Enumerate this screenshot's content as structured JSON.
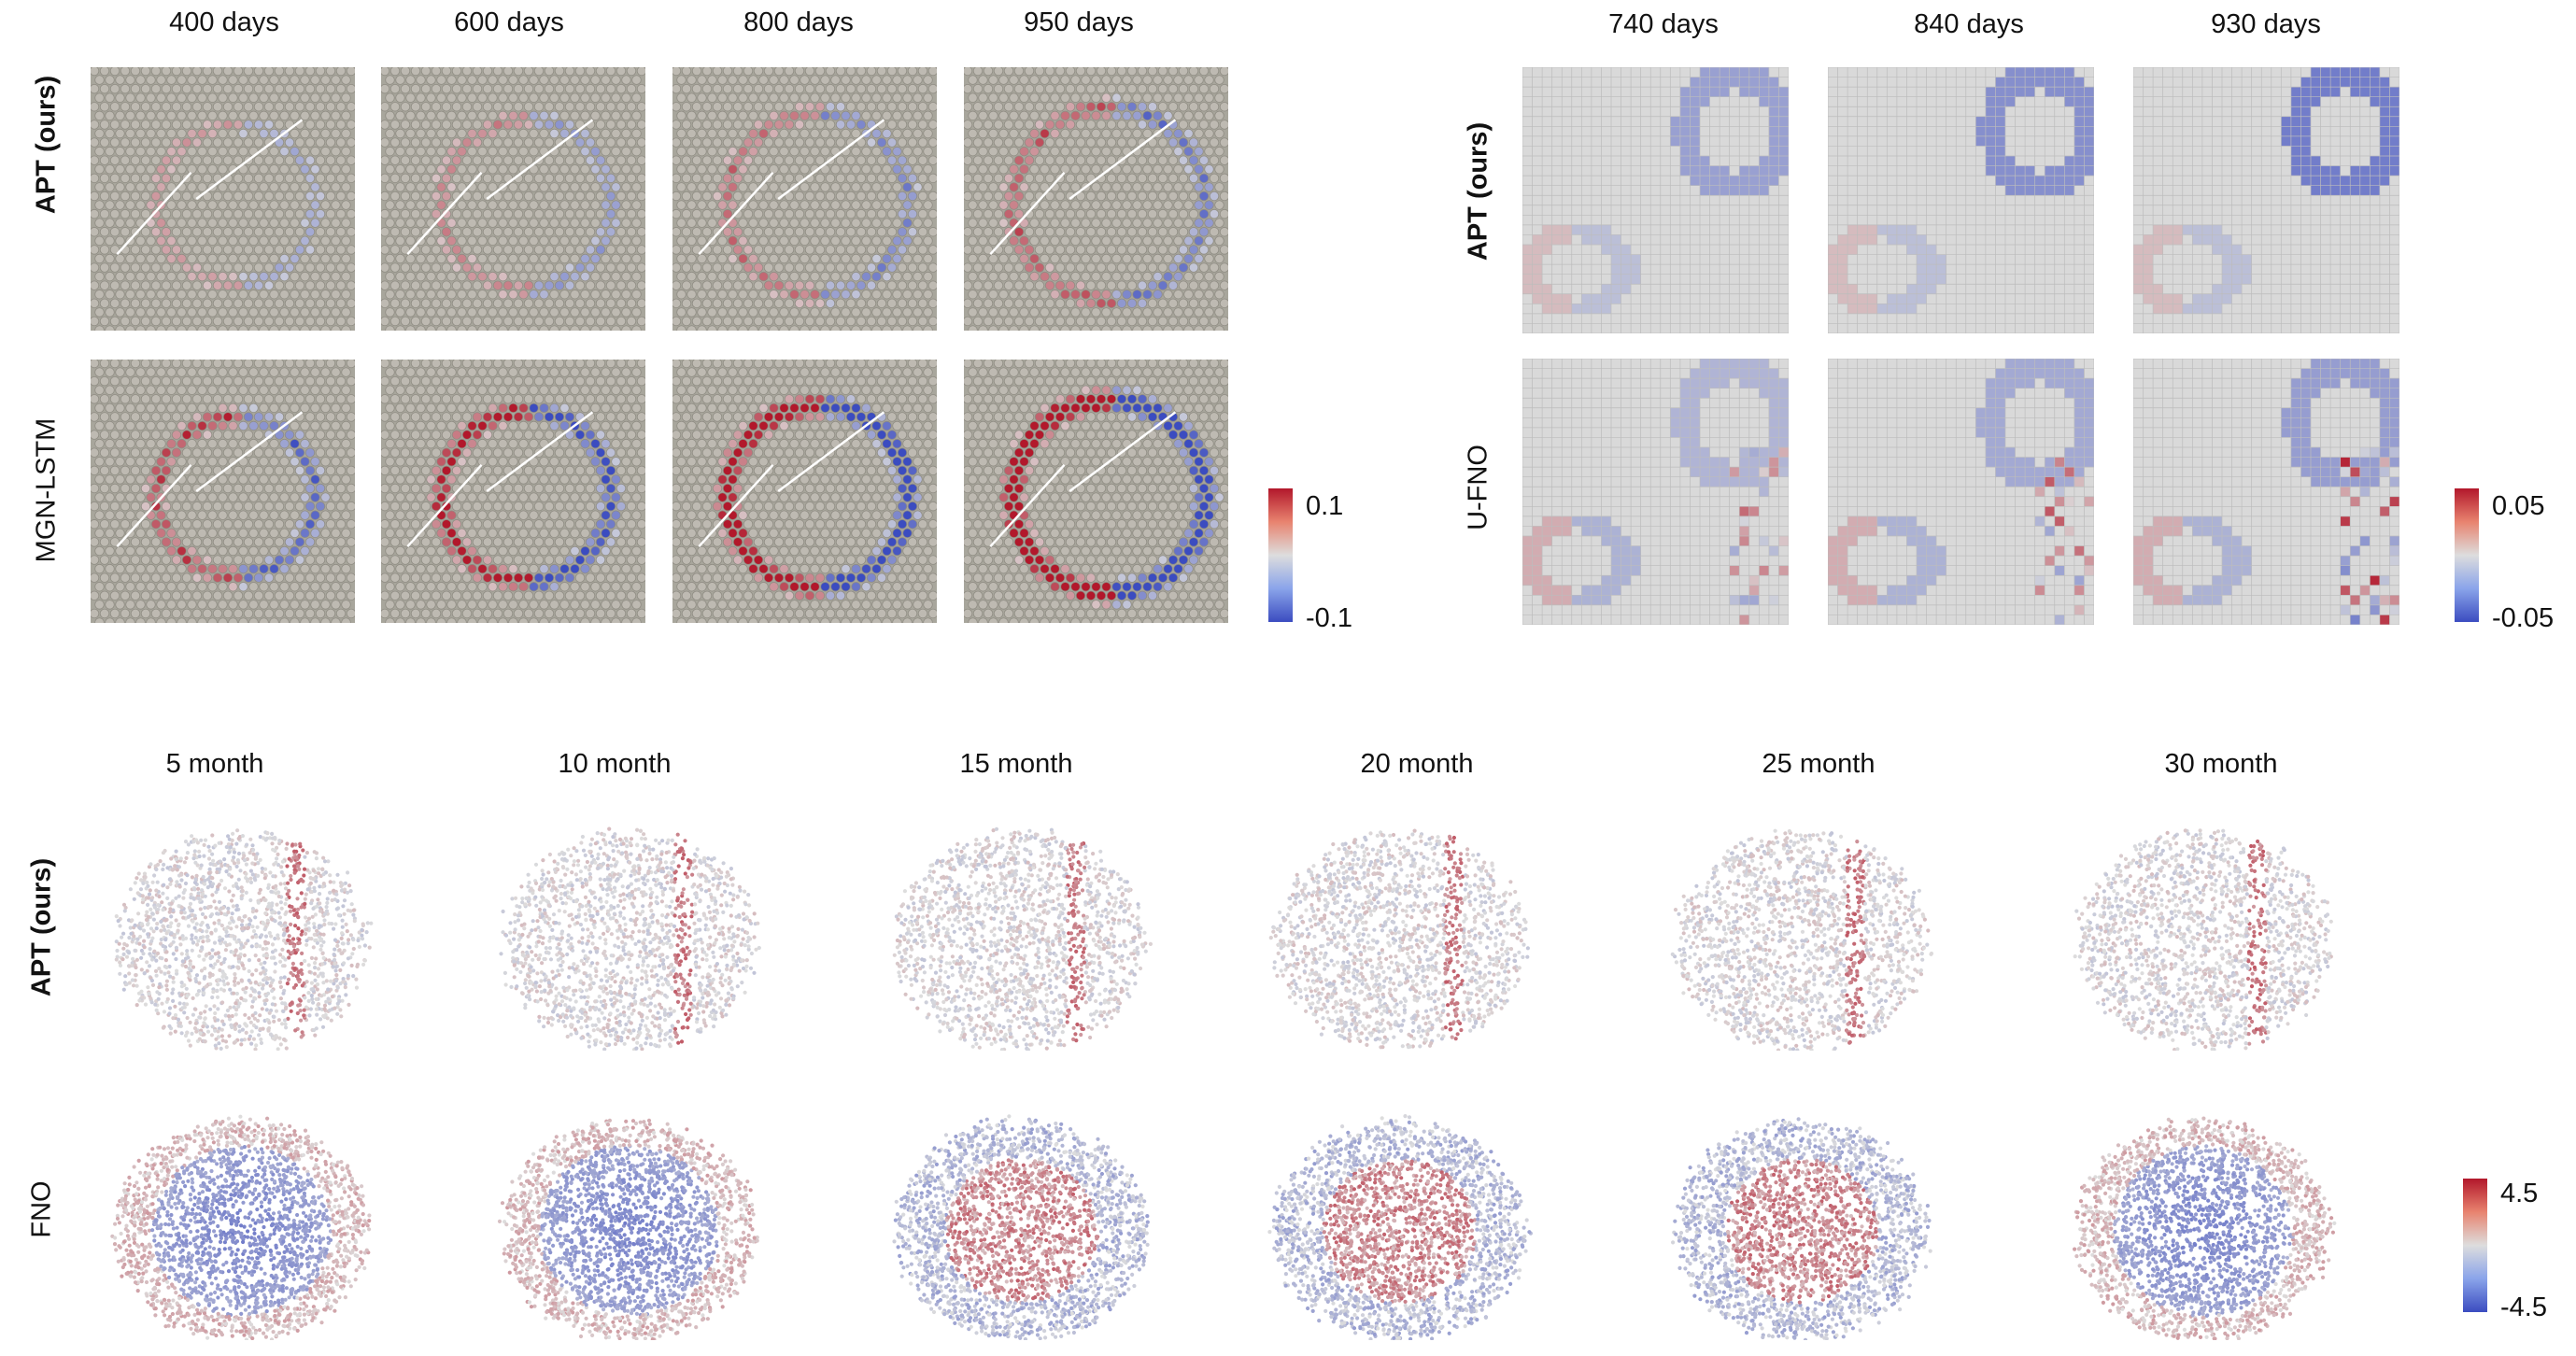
{
  "figure_a": {
    "time_labels": [
      "400 days",
      "600 days",
      "800 days",
      "950 days"
    ],
    "row_labels": [
      "APT (ours)",
      "MGN-LSTM"
    ],
    "colorbar": {
      "max": "0.1",
      "min": "-0.1"
    }
  },
  "figure_b": {
    "time_labels": [
      "740 days",
      "840 days",
      "930 days"
    ],
    "row_labels": [
      "APT (ours)",
      "U-FNO"
    ],
    "colorbar": {
      "max": "0.05",
      "min": "-0.05"
    }
  },
  "figure_c": {
    "time_labels": [
      "5 month",
      "10 month",
      "15 month",
      "20 month",
      "25 month",
      "30 month"
    ],
    "row_labels": [
      "APT (ours)",
      "FNO"
    ],
    "colorbar": {
      "max": "4.5",
      "min": "-4.5"
    }
  },
  "colors": {
    "high": "#b2182b",
    "mid": "#dddddd",
    "low": "#3b4cc0",
    "mesh_bg": "#a8a69c",
    "grid_bg": "#d9d9d9"
  }
}
